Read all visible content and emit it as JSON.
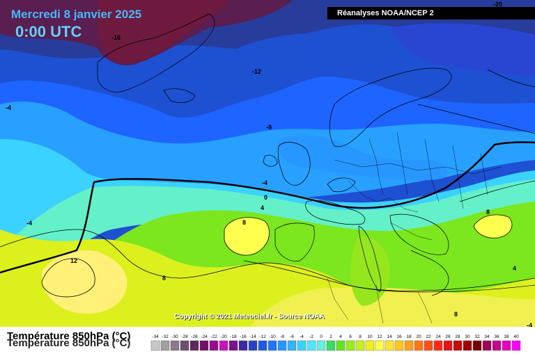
{
  "header": {
    "date": "Mercredi 8 janvier 2025",
    "time": "0:00 UTC"
  },
  "source": "Réanalyses NOAA/NCEP 2",
  "corner_value": "-20",
  "copyright": "Copyright © 2021 Meteociel.fr - Source NOAA",
  "legend": {
    "title": "Température 850hPa (°C)",
    "ticks": [
      "-34",
      "-32",
      "-30",
      "-28",
      "-26",
      "-24",
      "-22",
      "-20",
      "-18",
      "-16",
      "-14",
      "-12",
      "-10",
      "-8",
      "-6",
      "-4",
      "-2",
      "0",
      "2",
      "4",
      "6",
      "8",
      "10",
      "12",
      "14",
      "16",
      "18",
      "20",
      "22",
      "24",
      "26",
      "28",
      "30",
      "32",
      "34",
      "36",
      "38",
      "40"
    ],
    "colors": [
      "#c8c8c8",
      "#a0a0a0",
      "#8a7a8a",
      "#6e4e70",
      "#5a2a5a",
      "#74106a",
      "#9a0a90",
      "#c814b4",
      "#78148c",
      "#3c28a0",
      "#2840c8",
      "#1e5ae6",
      "#1e78ff",
      "#2896ff",
      "#32b4ff",
      "#3cd2ff",
      "#50e6ff",
      "#64f0dc",
      "#3cdc64",
      "#64e61e",
      "#96f01e",
      "#c8f01e",
      "#f0f01e",
      "#ffff50",
      "#ffe632",
      "#ffc81e",
      "#ffa01e",
      "#ff7814",
      "#ff5014",
      "#ff2814",
      "#e61414",
      "#c80a0a",
      "#a00000",
      "#780000",
      "#a0005a",
      "#c8008c",
      "#e600be",
      "#ff00ff"
    ]
  },
  "contour_labels": [
    "-16",
    "-12",
    "-8",
    "-4",
    "-4",
    "-4",
    "-4",
    "0",
    "4",
    "8",
    "8",
    "8",
    "8",
    "12",
    "4",
    "-20"
  ]
}
